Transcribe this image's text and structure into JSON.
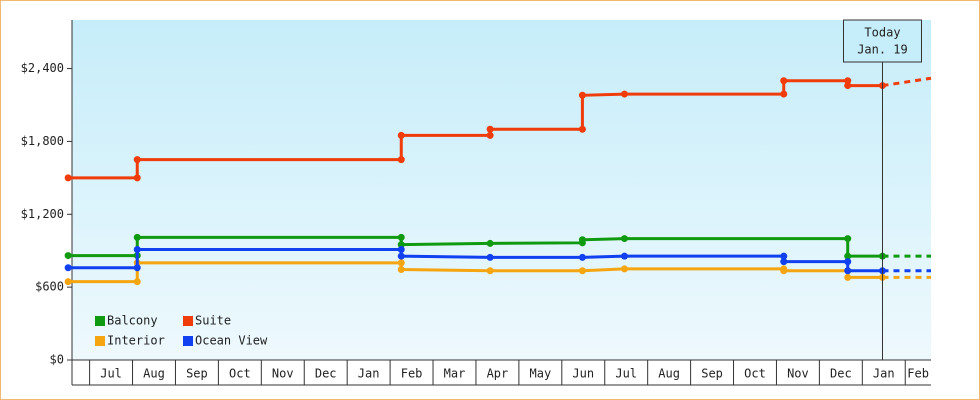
{
  "chart_data": {
    "type": "step-line",
    "ylim": [
      0,
      2800
    ],
    "yticks": [
      {
        "value": 0,
        "label": "$0"
      },
      {
        "value": 600,
        "label": "$600"
      },
      {
        "value": 1200,
        "label": "$1,200"
      },
      {
        "value": 1800,
        "label": "$1,800"
      },
      {
        "value": 2400,
        "label": "$2,400"
      }
    ],
    "xlim": [
      -0.41,
      19.6
    ],
    "xticks": [
      {
        "value": 0.5,
        "label": "Jul"
      },
      {
        "value": 1.5,
        "label": "Aug"
      },
      {
        "value": 2.5,
        "label": "Sep"
      },
      {
        "value": 3.5,
        "label": "Oct"
      },
      {
        "value": 4.5,
        "label": "Nov"
      },
      {
        "value": 5.5,
        "label": "Dec"
      },
      {
        "value": 6.5,
        "label": "Jan"
      },
      {
        "value": 7.5,
        "label": "Feb"
      },
      {
        "value": 8.5,
        "label": "Mar"
      },
      {
        "value": 9.5,
        "label": "Apr"
      },
      {
        "value": 10.5,
        "label": "May"
      },
      {
        "value": 11.5,
        "label": "Jun"
      },
      {
        "value": 12.5,
        "label": "Jul"
      },
      {
        "value": 13.5,
        "label": "Aug"
      },
      {
        "value": 14.5,
        "label": "Sep"
      },
      {
        "value": 15.5,
        "label": "Oct"
      },
      {
        "value": 16.5,
        "label": "Nov"
      },
      {
        "value": 17.5,
        "label": "Dec"
      },
      {
        "value": 18.5,
        "label": "Jan"
      },
      {
        "value": 19.5,
        "label": "Feb"
      }
    ],
    "today": {
      "x": 18.47,
      "label": [
        "Today",
        "Jan. 19"
      ]
    },
    "series": [
      {
        "name": "Balcony",
        "color": "#109a10",
        "x": [
          -0.5,
          1.11,
          1.11,
          7.26,
          7.26,
          9.33,
          11.48,
          11.48,
          12.46,
          17.66,
          17.66,
          18.47
        ],
        "values": [
          860,
          860,
          1010,
          1010,
          950,
          960,
          965,
          990,
          1000,
          1000,
          855,
          855
        ],
        "projection": 855
      },
      {
        "name": "Suite",
        "color": "#f03c0a",
        "x": [
          -0.5,
          1.11,
          1.11,
          7.26,
          7.26,
          9.33,
          9.33,
          11.48,
          11.48,
          12.46,
          16.17,
          16.17,
          17.66,
          17.66,
          18.47
        ],
        "values": [
          1500,
          1500,
          1650,
          1650,
          1850,
          1850,
          1900,
          1900,
          2180,
          2190,
          2190,
          2300,
          2300,
          2260,
          2260
        ],
        "projection": 2320
      },
      {
        "name": "Interior",
        "color": "#f5a510",
        "x": [
          -0.5,
          1.11,
          1.11,
          7.26,
          7.26,
          9.33,
          11.48,
          12.46,
          16.17,
          16.17,
          17.66,
          17.66,
          18.47
        ],
        "values": [
          645,
          645,
          800,
          800,
          745,
          735,
          735,
          750,
          750,
          735,
          735,
          680,
          680
        ],
        "projection": 680
      },
      {
        "name": "Ocean View",
        "color": "#1040f0",
        "x": [
          -0.5,
          1.11,
          1.11,
          7.26,
          7.26,
          9.33,
          11.48,
          12.46,
          16.17,
          16.17,
          17.66,
          17.66,
          18.47
        ],
        "values": [
          760,
          760,
          910,
          910,
          855,
          845,
          845,
          855,
          855,
          810,
          810,
          735,
          735
        ],
        "projection": 735
      }
    ]
  }
}
